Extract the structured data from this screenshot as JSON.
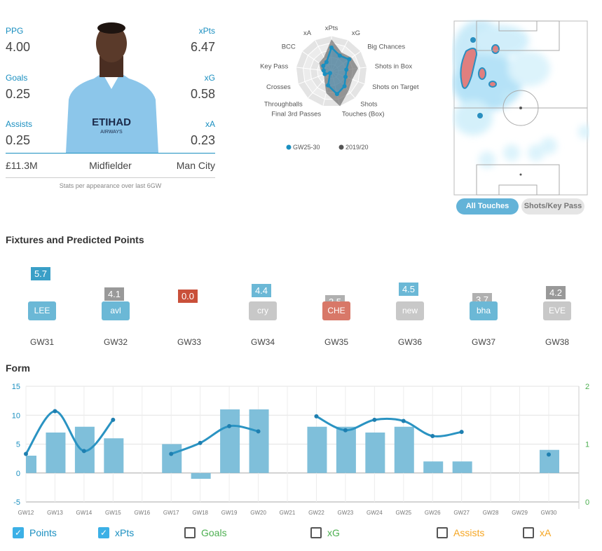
{
  "player": {
    "ppg_label": "PPG",
    "ppg": "4.00",
    "xpts_label": "xPts",
    "xpts": "6.47",
    "goals_label": "Goals",
    "goals": "0.25",
    "xg_label": "xG",
    "xg": "0.58",
    "assists_label": "Assists",
    "assists": "0.25",
    "xa_label": "xA",
    "xa": "0.23",
    "price": "£11.3M",
    "position": "Midfielder",
    "team": "Man City",
    "caption": "Stats per appearance over last 6GW",
    "shirt_sponsor": "ETIHAD",
    "shirt_sponsor_sub": "AIRWAYS"
  },
  "radar": {
    "axes": [
      "xPts",
      "xG",
      "Big Chances",
      "Shots in Box",
      "Shots on Target",
      "Shots",
      "Touches (Box)",
      "Final 3rd Passes",
      "Throughballs",
      "Crosses",
      "Key Pass",
      "BCC",
      "xA"
    ],
    "series": [
      {
        "name": "GW25-30",
        "color": "#1a8fc0",
        "values": [
          0.67,
          0.5,
          0.6,
          0.42,
          0.42,
          0.55,
          0.65,
          0.4,
          0.06,
          0.2,
          0.22,
          0.28,
          0.3
        ]
      },
      {
        "name": "2019/20",
        "color": "#555555",
        "values": [
          0.9,
          0.6,
          0.68,
          0.75,
          0.62,
          0.72,
          1.0,
          0.62,
          0.3,
          0.22,
          0.3,
          0.42,
          0.45
        ]
      }
    ]
  },
  "heatmap": {
    "buttons": [
      "All Touches",
      "Shots/Key Pass"
    ],
    "active": "All Touches"
  },
  "fixtures": {
    "title": "Fixtures and Predicted Points",
    "items": [
      {
        "gw": "GW31",
        "points": "5.7",
        "opp": "LEE",
        "pcolor": "#3a9fc7",
        "ocolor": "#6bb8d6"
      },
      {
        "gw": "GW32",
        "points": "4.1",
        "opp": "avl",
        "pcolor": "#999999",
        "ocolor": "#6bb8d6"
      },
      {
        "gw": "GW33",
        "points": "0.0",
        "opp": "",
        "pcolor": "#c9503a",
        "ocolor": ""
      },
      {
        "gw": "GW34",
        "points": "4.4",
        "opp": "cry",
        "pcolor": "#6bb8d6",
        "ocolor": "#c8c8c8"
      },
      {
        "gw": "GW35",
        "points": "3.5",
        "opp": "CHE",
        "pcolor": "#b0b0b0",
        "ocolor": "#d87868"
      },
      {
        "gw": "GW36",
        "points": "4.5",
        "opp": "new",
        "pcolor": "#6bb8d6",
        "ocolor": "#c8c8c8"
      },
      {
        "gw": "GW37",
        "points": "3.7",
        "opp": "bha",
        "pcolor": "#b0b0b0",
        "ocolor": "#6bb8d6"
      },
      {
        "gw": "GW38",
        "points": "4.2",
        "opp": "EVE",
        "pcolor": "#999999",
        "ocolor": "#c8c8c8"
      }
    ]
  },
  "form": {
    "title": "Form",
    "toggles": [
      {
        "label": "Points",
        "checked": true,
        "color": "#1a8fc0"
      },
      {
        "label": "xPts",
        "checked": true,
        "color": "#1a8fc0"
      },
      {
        "label": "Goals",
        "checked": false,
        "color": "#4caf50"
      },
      {
        "label": "xG",
        "checked": false,
        "color": "#4caf50"
      },
      {
        "label": "Assists",
        "checked": false,
        "color": "#f5a623"
      },
      {
        "label": "xA",
        "checked": false,
        "color": "#f5a623"
      }
    ]
  },
  "chart_data": {
    "type": "bar",
    "categories": [
      "GW12",
      "GW13",
      "GW14",
      "GW15",
      "GW16",
      "GW17",
      "GW18",
      "GW19",
      "GW20",
      "GW21",
      "GW22",
      "GW23",
      "GW24",
      "GW25",
      "GW26",
      "GW27",
      "GW28",
      "GW29",
      "GW30"
    ],
    "series": [
      {
        "name": "Points",
        "type": "bar",
        "color": "#7fbfda",
        "values": [
          3,
          7,
          8,
          6,
          null,
          5,
          -1,
          11,
          11,
          null,
          8,
          8,
          7,
          8,
          2,
          2,
          null,
          null,
          4
        ]
      },
      {
        "name": "xPts",
        "type": "line",
        "color": "#2a93c2",
        "values": [
          3.3,
          10.7,
          3.8,
          9.2,
          null,
          3.3,
          5.2,
          8.1,
          7.2,
          null,
          9.8,
          7.4,
          9.2,
          9.0,
          6.4,
          7.1,
          null,
          null,
          3.2
        ]
      }
    ],
    "ylim": [
      -5,
      15
    ],
    "yticks": [
      "15",
      "10",
      "5",
      "0",
      "-5"
    ],
    "y2lim": [
      0,
      2
    ],
    "y2ticks": [
      "2",
      "1",
      "0"
    ],
    "grid": true
  }
}
